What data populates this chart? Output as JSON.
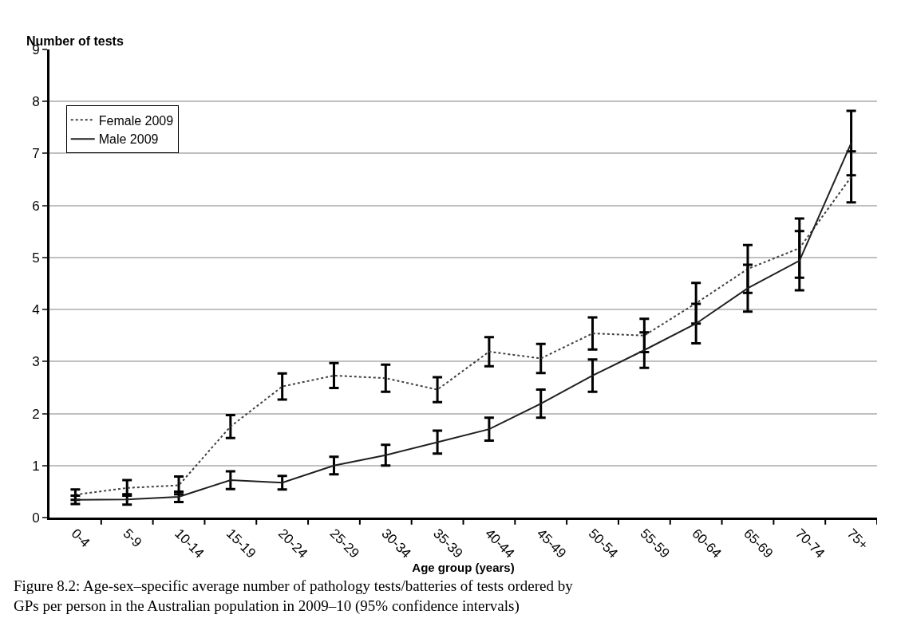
{
  "chart_data": {
    "type": "line",
    "ylabel": "Number of tests",
    "xlabel": "Age group (years)",
    "annotations": [
      "Figure 8.2: Age-sex–specific average number of pathology tests/batteries of tests ordered by GPs per person in the Australian population in 2009–10 (95% confidence intervals)"
    ],
    "categories": [
      "0-4",
      "5-9",
      "10-14",
      "15-19",
      "20-24",
      "25-29",
      "30-34",
      "35-39",
      "40-44",
      "45-49",
      "50-54",
      "55-59",
      "60-64",
      "65-69",
      "70-74",
      "75+"
    ],
    "series": [
      {
        "name": "Female 2009",
        "color": "#404040",
        "line_style": "dotted",
        "values": [
          0.44,
          0.57,
          0.62,
          1.75,
          2.52,
          2.73,
          2.68,
          2.46,
          3.19,
          3.06,
          3.54,
          3.5,
          4.12,
          4.78,
          5.18,
          6.55
        ],
        "errors": [
          0.1,
          0.15,
          0.17,
          0.22,
          0.25,
          0.24,
          0.26,
          0.24,
          0.28,
          0.28,
          0.31,
          0.32,
          0.39,
          0.46,
          0.57,
          0.49
        ]
      },
      {
        "name": "Male 2009",
        "color": "#202020",
        "line_style": "solid",
        "values": [
          0.34,
          0.35,
          0.4,
          0.72,
          0.67,
          1.0,
          1.2,
          1.45,
          1.7,
          2.19,
          2.73,
          3.22,
          3.73,
          4.41,
          4.94,
          7.2
        ],
        "errors": [
          0.08,
          0.1,
          0.1,
          0.17,
          0.13,
          0.17,
          0.2,
          0.22,
          0.22,
          0.27,
          0.31,
          0.34,
          0.38,
          0.45,
          0.57,
          0.62
        ]
      }
    ],
    "ylim": [
      0,
      9
    ],
    "yticks": [
      0,
      1,
      2,
      3,
      4,
      5,
      6,
      7,
      8,
      9
    ],
    "grid": "y",
    "legend": "top left",
    "marker": "none"
  }
}
